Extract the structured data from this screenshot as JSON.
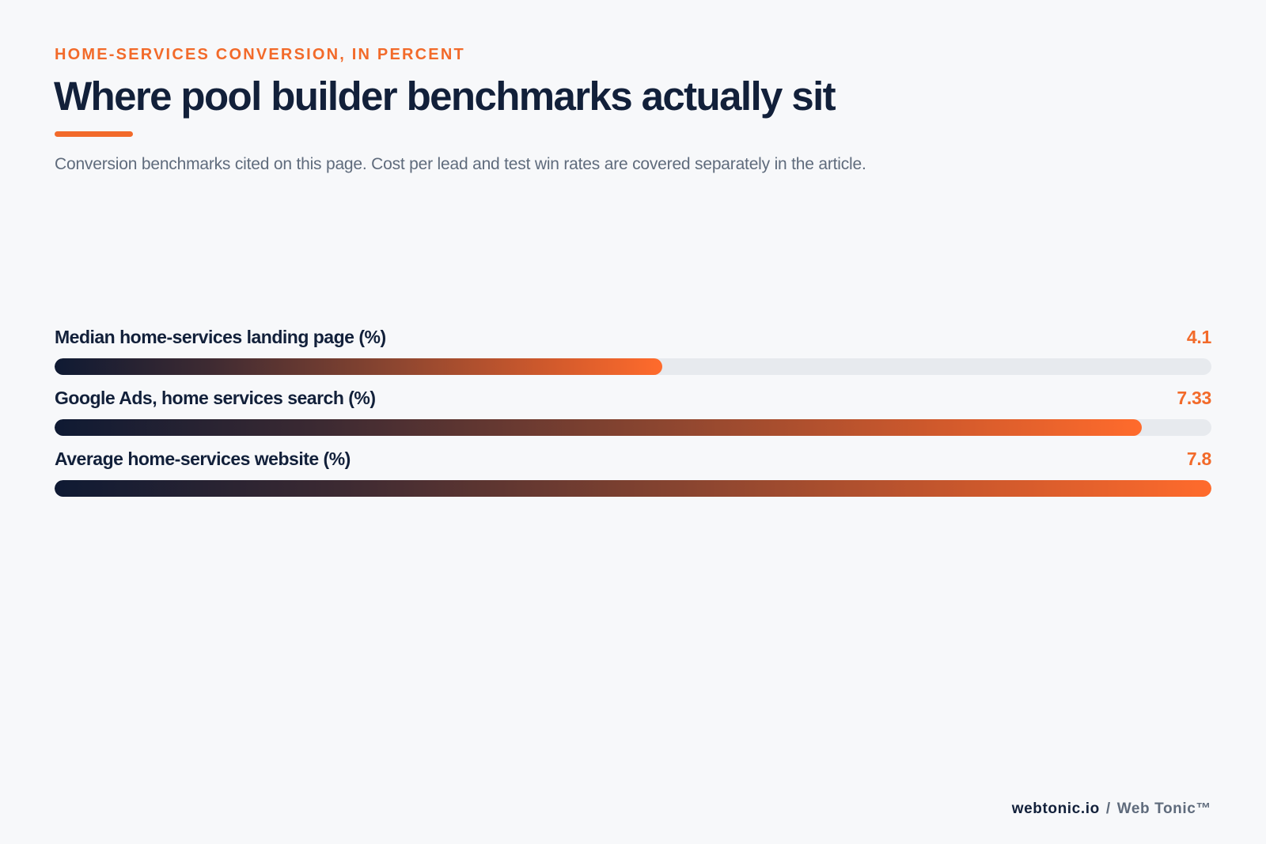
{
  "header": {
    "eyebrow": "HOME-SERVICES CONVERSION, IN PERCENT",
    "title": "Where pool builder benchmarks actually sit",
    "subtitle": "Conversion benchmarks cited on this page. Cost per lead and test win rates are covered separately in the article."
  },
  "colors": {
    "accent": "#f26a2a",
    "navy": "#12203a",
    "track": "#e7eaee",
    "background": "#f7f8fa"
  },
  "chart_data": {
    "type": "bar",
    "orientation": "horizontal",
    "title": "Where pool builder benchmarks actually sit",
    "categories": [
      "Median home-services landing page (%)",
      "Google Ads, home services search (%)",
      "Average home-services website (%)"
    ],
    "values": [
      4.1,
      7.33,
      7.8
    ],
    "value_labels": [
      "4.1",
      "7.33",
      "7.8"
    ],
    "xlim": [
      0,
      7.8
    ],
    "grid": false
  },
  "footer": {
    "domain": "webtonic.io",
    "separator": "/",
    "brand": "Web Tonic™"
  }
}
